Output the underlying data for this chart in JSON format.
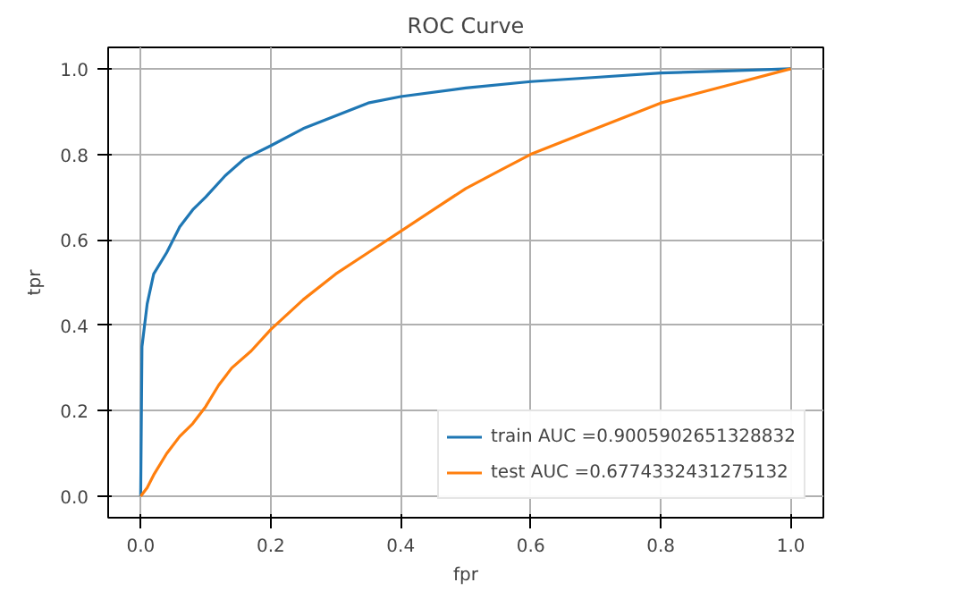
{
  "chart_data": {
    "type": "line",
    "title": "ROC Curve",
    "xlabel": "fpr",
    "ylabel": "tpr",
    "xlim": [
      -0.05,
      1.05
    ],
    "ylim": [
      -0.05,
      1.05
    ],
    "xticks": [
      {
        "value": 0,
        "label": "0.0"
      },
      0.2,
      0.4,
      0.6,
      0.8,
      {
        "value": 1,
        "label": "1.0"
      }
    ],
    "yticks": [
      {
        "value": 0,
        "label": "0.0"
      },
      0.2,
      0.4,
      0.6,
      0.8,
      {
        "value": 1,
        "label": "1.0"
      }
    ],
    "grid": true,
    "legend": "bottom right",
    "line_style": "solid",
    "series": [
      {
        "name": "train AUC =0.9005902651328832",
        "color": "#1f77b4",
        "x": [
          0,
          0.002,
          0.01,
          0.02,
          0.04,
          0.06,
          0.08,
          0.1,
          0.13,
          0.16,
          0.2,
          0.25,
          0.3,
          0.35,
          0.4,
          0.5,
          0.6,
          0.7,
          0.8,
          0.9,
          1
        ],
        "values": [
          0,
          0.35,
          0.45,
          0.52,
          0.57,
          0.63,
          0.67,
          0.7,
          0.75,
          0.79,
          0.82,
          0.86,
          0.89,
          0.92,
          0.935,
          0.955,
          0.97,
          0.98,
          0.99,
          0.995,
          1
        ]
      },
      {
        "name": "test AUC =0.6774332431275132",
        "color": "#ff7f0e",
        "x": [
          0,
          0.01,
          0.02,
          0.04,
          0.06,
          0.08,
          0.1,
          0.12,
          0.14,
          0.17,
          0.2,
          0.25,
          0.3,
          0.35,
          0.4,
          0.45,
          0.5,
          0.55,
          0.6,
          0.7,
          0.8,
          0.9,
          1
        ],
        "values": [
          0,
          0.02,
          0.05,
          0.1,
          0.14,
          0.17,
          0.21,
          0.26,
          0.3,
          0.34,
          0.39,
          0.46,
          0.52,
          0.57,
          0.62,
          0.67,
          0.72,
          0.76,
          0.8,
          0.86,
          0.92,
          0.96,
          1
        ]
      }
    ]
  }
}
